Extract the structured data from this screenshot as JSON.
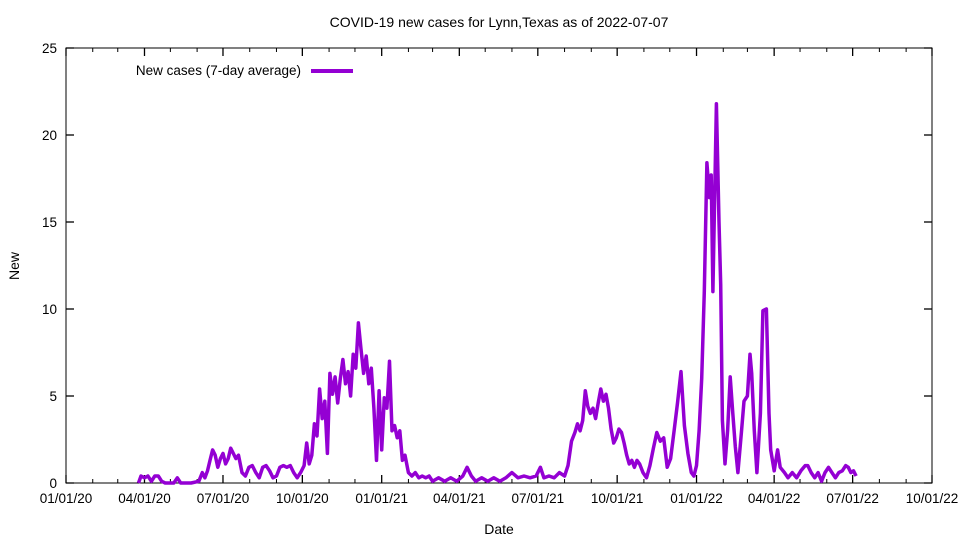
{
  "chart_data": {
    "type": "line",
    "title": "COVID-19 new cases for Lynn,Texas as of 2022-07-07",
    "xlabel": "Date",
    "ylabel": "New",
    "legend_label": "New cases (7-day average)",
    "legend_position": "top-left-inside",
    "grid": false,
    "line_color": "#9400d3",
    "axis_color": "#000000",
    "background_color": "#ffffff",
    "ylim": [
      0,
      25
    ],
    "xlim": [
      "2020-01-01",
      "2022-10-01"
    ],
    "y_ticks": [
      0,
      5,
      10,
      15,
      20,
      25
    ],
    "x_ticks": [
      {
        "date": "2020-01-01",
        "label": "01/01/20"
      },
      {
        "date": "2020-04-01",
        "label": "04/01/20"
      },
      {
        "date": "2020-07-01",
        "label": "07/01/20"
      },
      {
        "date": "2020-10-01",
        "label": "10/01/20"
      },
      {
        "date": "2021-01-01",
        "label": "01/01/21"
      },
      {
        "date": "2021-04-01",
        "label": "04/01/21"
      },
      {
        "date": "2021-07-01",
        "label": "07/01/21"
      },
      {
        "date": "2021-10-01",
        "label": "10/01/21"
      },
      {
        "date": "2022-01-01",
        "label": "01/01/22"
      },
      {
        "date": "2022-04-01",
        "label": "04/01/22"
      },
      {
        "date": "2022-07-01",
        "label": "07/01/22"
      },
      {
        "date": "2022-10-01",
        "label": "10/01/22"
      }
    ],
    "x_minor_tick_interval": "1 month",
    "series": [
      {
        "name": "New cases (7-day average)",
        "color": "#9400d3",
        "points": [
          [
            "2020-03-25",
            0.0
          ],
          [
            "2020-03-28",
            0.4
          ],
          [
            "2020-04-01",
            0.3
          ],
          [
            "2020-04-05",
            0.4
          ],
          [
            "2020-04-09",
            0.1
          ],
          [
            "2020-04-13",
            0.4
          ],
          [
            "2020-04-17",
            0.4
          ],
          [
            "2020-04-21",
            0.1
          ],
          [
            "2020-04-25",
            0.0
          ],
          [
            "2020-05-05",
            0.0
          ],
          [
            "2020-05-09",
            0.3
          ],
          [
            "2020-05-13",
            0.0
          ],
          [
            "2020-05-25",
            0.0
          ],
          [
            "2020-06-03",
            0.1
          ],
          [
            "2020-06-07",
            0.6
          ],
          [
            "2020-06-10",
            0.3
          ],
          [
            "2020-06-13",
            0.7
          ],
          [
            "2020-06-16",
            1.3
          ],
          [
            "2020-06-19",
            1.9
          ],
          [
            "2020-06-22",
            1.6
          ],
          [
            "2020-06-25",
            0.9
          ],
          [
            "2020-06-28",
            1.4
          ],
          [
            "2020-07-01",
            1.7
          ],
          [
            "2020-07-04",
            1.1
          ],
          [
            "2020-07-07",
            1.4
          ],
          [
            "2020-07-10",
            2.0
          ],
          [
            "2020-07-13",
            1.7
          ],
          [
            "2020-07-16",
            1.4
          ],
          [
            "2020-07-19",
            1.6
          ],
          [
            "2020-07-23",
            0.6
          ],
          [
            "2020-07-27",
            0.4
          ],
          [
            "2020-07-31",
            0.9
          ],
          [
            "2020-08-04",
            1.0
          ],
          [
            "2020-08-08",
            0.6
          ],
          [
            "2020-08-12",
            0.3
          ],
          [
            "2020-08-16",
            0.9
          ],
          [
            "2020-08-20",
            1.0
          ],
          [
            "2020-08-24",
            0.7
          ],
          [
            "2020-08-28",
            0.3
          ],
          [
            "2020-09-01",
            0.4
          ],
          [
            "2020-09-05",
            0.9
          ],
          [
            "2020-09-09",
            1.0
          ],
          [
            "2020-09-13",
            0.9
          ],
          [
            "2020-09-17",
            1.0
          ],
          [
            "2020-09-21",
            0.6
          ],
          [
            "2020-09-25",
            0.3
          ],
          [
            "2020-09-29",
            0.6
          ],
          [
            "2020-10-03",
            1.0
          ],
          [
            "2020-10-06",
            2.3
          ],
          [
            "2020-10-09",
            1.1
          ],
          [
            "2020-10-12",
            1.6
          ],
          [
            "2020-10-15",
            3.4
          ],
          [
            "2020-10-18",
            2.7
          ],
          [
            "2020-10-21",
            5.4
          ],
          [
            "2020-10-24",
            3.7
          ],
          [
            "2020-10-27",
            4.7
          ],
          [
            "2020-10-30",
            1.7
          ],
          [
            "2020-11-02",
            6.3
          ],
          [
            "2020-11-05",
            5.1
          ],
          [
            "2020-11-08",
            6.1
          ],
          [
            "2020-11-11",
            4.6
          ],
          [
            "2020-11-14",
            6.0
          ],
          [
            "2020-11-17",
            7.1
          ],
          [
            "2020-11-20",
            5.7
          ],
          [
            "2020-11-23",
            6.4
          ],
          [
            "2020-11-26",
            5.0
          ],
          [
            "2020-11-29",
            7.4
          ],
          [
            "2020-12-02",
            6.6
          ],
          [
            "2020-12-05",
            9.2
          ],
          [
            "2020-12-08",
            7.7
          ],
          [
            "2020-12-11",
            6.3
          ],
          [
            "2020-12-14",
            7.3
          ],
          [
            "2020-12-17",
            5.7
          ],
          [
            "2020-12-20",
            6.6
          ],
          [
            "2020-12-23",
            4.3
          ],
          [
            "2020-12-26",
            1.3
          ],
          [
            "2020-12-29",
            5.3
          ],
          [
            "2021-01-01",
            1.9
          ],
          [
            "2021-01-04",
            4.9
          ],
          [
            "2021-01-07",
            4.3
          ],
          [
            "2021-01-10",
            7.0
          ],
          [
            "2021-01-13",
            3.0
          ],
          [
            "2021-01-16",
            3.3
          ],
          [
            "2021-01-19",
            2.6
          ],
          [
            "2021-01-22",
            3.0
          ],
          [
            "2021-01-25",
            1.3
          ],
          [
            "2021-01-28",
            1.6
          ],
          [
            "2021-02-01",
            0.6
          ],
          [
            "2021-02-05",
            0.4
          ],
          [
            "2021-02-09",
            0.6
          ],
          [
            "2021-02-13",
            0.3
          ],
          [
            "2021-02-17",
            0.4
          ],
          [
            "2021-02-21",
            0.3
          ],
          [
            "2021-02-25",
            0.4
          ],
          [
            "2021-03-01",
            0.1
          ],
          [
            "2021-03-08",
            0.3
          ],
          [
            "2021-03-15",
            0.1
          ],
          [
            "2021-03-22",
            0.3
          ],
          [
            "2021-03-29",
            0.1
          ],
          [
            "2021-04-05",
            0.4
          ],
          [
            "2021-04-10",
            0.9
          ],
          [
            "2021-04-15",
            0.4
          ],
          [
            "2021-04-20",
            0.1
          ],
          [
            "2021-04-27",
            0.3
          ],
          [
            "2021-05-04",
            0.1
          ],
          [
            "2021-05-11",
            0.3
          ],
          [
            "2021-05-18",
            0.1
          ],
          [
            "2021-05-25",
            0.3
          ],
          [
            "2021-06-01",
            0.6
          ],
          [
            "2021-06-08",
            0.3
          ],
          [
            "2021-06-15",
            0.4
          ],
          [
            "2021-06-22",
            0.3
          ],
          [
            "2021-06-29",
            0.4
          ],
          [
            "2021-07-04",
            0.9
          ],
          [
            "2021-07-08",
            0.3
          ],
          [
            "2021-07-14",
            0.4
          ],
          [
            "2021-07-20",
            0.3
          ],
          [
            "2021-07-26",
            0.6
          ],
          [
            "2021-08-01",
            0.4
          ],
          [
            "2021-08-05",
            1.0
          ],
          [
            "2021-08-09",
            2.4
          ],
          [
            "2021-08-13",
            2.9
          ],
          [
            "2021-08-16",
            3.4
          ],
          [
            "2021-08-19",
            3.0
          ],
          [
            "2021-08-22",
            3.6
          ],
          [
            "2021-08-25",
            5.3
          ],
          [
            "2021-08-28",
            4.4
          ],
          [
            "2021-08-31",
            4.0
          ],
          [
            "2021-09-03",
            4.3
          ],
          [
            "2021-09-06",
            3.7
          ],
          [
            "2021-09-09",
            4.6
          ],
          [
            "2021-09-12",
            5.4
          ],
          [
            "2021-09-15",
            4.7
          ],
          [
            "2021-09-18",
            5.1
          ],
          [
            "2021-09-21",
            4.3
          ],
          [
            "2021-09-24",
            3.1
          ],
          [
            "2021-09-27",
            2.3
          ],
          [
            "2021-09-30",
            2.6
          ],
          [
            "2021-10-03",
            3.1
          ],
          [
            "2021-10-06",
            2.9
          ],
          [
            "2021-10-09",
            2.3
          ],
          [
            "2021-10-12",
            1.6
          ],
          [
            "2021-10-15",
            1.1
          ],
          [
            "2021-10-18",
            1.3
          ],
          [
            "2021-10-21",
            0.9
          ],
          [
            "2021-10-24",
            1.3
          ],
          [
            "2021-10-27",
            1.1
          ],
          [
            "2021-10-31",
            0.6
          ],
          [
            "2021-11-04",
            0.3
          ],
          [
            "2021-11-08",
            1.0
          ],
          [
            "2021-11-12",
            2.0
          ],
          [
            "2021-11-16",
            2.9
          ],
          [
            "2021-11-20",
            2.4
          ],
          [
            "2021-11-24",
            2.6
          ],
          [
            "2021-11-28",
            0.9
          ],
          [
            "2021-12-02",
            1.4
          ],
          [
            "2021-12-06",
            3.0
          ],
          [
            "2021-12-10",
            4.6
          ],
          [
            "2021-12-14",
            6.4
          ],
          [
            "2021-12-18",
            3.3
          ],
          [
            "2021-12-22",
            1.7
          ],
          [
            "2021-12-26",
            0.6
          ],
          [
            "2021-12-29",
            0.4
          ],
          [
            "2022-01-01",
            1.0
          ],
          [
            "2022-01-04",
            3.0
          ],
          [
            "2022-01-07",
            6.0
          ],
          [
            "2022-01-10",
            11.0
          ],
          [
            "2022-01-13",
            18.4
          ],
          [
            "2022-01-16",
            16.4
          ],
          [
            "2022-01-18",
            17.7
          ],
          [
            "2022-01-20",
            11.0
          ],
          [
            "2022-01-24",
            21.8
          ],
          [
            "2022-01-27",
            15.0
          ],
          [
            "2022-01-29",
            11.4
          ],
          [
            "2022-01-31",
            3.6
          ],
          [
            "2022-02-03",
            1.1
          ],
          [
            "2022-02-06",
            3.0
          ],
          [
            "2022-02-09",
            6.1
          ],
          [
            "2022-02-12",
            4.0
          ],
          [
            "2022-02-15",
            2.1
          ],
          [
            "2022-02-18",
            0.6
          ],
          [
            "2022-02-22",
            2.9
          ],
          [
            "2022-02-25",
            4.7
          ],
          [
            "2022-03-01",
            5.0
          ],
          [
            "2022-03-04",
            7.4
          ],
          [
            "2022-03-06",
            6.3
          ],
          [
            "2022-03-09",
            3.0
          ],
          [
            "2022-03-12",
            0.6
          ],
          [
            "2022-03-16",
            4.0
          ],
          [
            "2022-03-19",
            9.9
          ],
          [
            "2022-03-23",
            10.0
          ],
          [
            "2022-03-26",
            4.0
          ],
          [
            "2022-03-28",
            1.9
          ],
          [
            "2022-04-01",
            0.7
          ],
          [
            "2022-04-05",
            1.9
          ],
          [
            "2022-04-08",
            0.9
          ],
          [
            "2022-04-13",
            0.6
          ],
          [
            "2022-04-17",
            0.3
          ],
          [
            "2022-04-22",
            0.6
          ],
          [
            "2022-04-27",
            0.3
          ],
          [
            "2022-05-02",
            0.7
          ],
          [
            "2022-05-07",
            1.0
          ],
          [
            "2022-05-10",
            1.0
          ],
          [
            "2022-05-14",
            0.6
          ],
          [
            "2022-05-18",
            0.3
          ],
          [
            "2022-05-22",
            0.6
          ],
          [
            "2022-05-26",
            0.1
          ],
          [
            "2022-05-30",
            0.6
          ],
          [
            "2022-06-03",
            0.9
          ],
          [
            "2022-06-07",
            0.6
          ],
          [
            "2022-06-11",
            0.3
          ],
          [
            "2022-06-15",
            0.6
          ],
          [
            "2022-06-19",
            0.7
          ],
          [
            "2022-06-23",
            1.0
          ],
          [
            "2022-06-26",
            0.9
          ],
          [
            "2022-06-29",
            0.6
          ],
          [
            "2022-07-02",
            0.7
          ],
          [
            "2022-07-05",
            0.4
          ]
        ]
      }
    ]
  }
}
